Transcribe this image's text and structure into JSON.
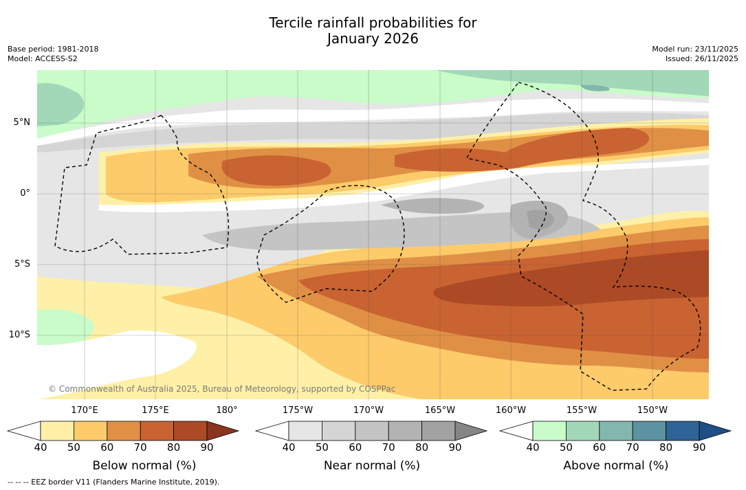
{
  "title_line1": "Tercile rainfall probabilities for",
  "title_line2": "January 2026",
  "meta_left": [
    "Base period: 1981-2018",
    "Model: ACCESS-S2"
  ],
  "meta_right": [
    "Model run: 23/11/2025",
    "Issued: 26/11/2025"
  ],
  "lat_labels": [
    "5°N",
    "0°",
    "5°S",
    "10°S"
  ],
  "lon_labels": [
    "170°E",
    "175°E",
    "180°",
    "175°W",
    "170°W",
    "165°W",
    "160°W",
    "155°W",
    "150°W"
  ],
  "copyright": "© Commonwealth of Australia 2025, Bureau of Meteorology, supported by COSPPac",
  "footer": "--  --  -- EEZ border V11 (Flanders Marine Institute, 2019).",
  "colorbars": [
    {
      "id": "below",
      "title": "Below normal (%)",
      "ticks": [
        "40",
        "50",
        "60",
        "70",
        "80",
        "90"
      ],
      "colors": [
        "#fff0a8",
        "#fdcb6a",
        "#e09045",
        "#c96331",
        "#ad4a26"
      ],
      "extend_min": "#ffffff",
      "extend_max": "#8b3420"
    },
    {
      "id": "near",
      "title": "Near normal (%)",
      "ticks": [
        "40",
        "50",
        "60",
        "70",
        "80",
        "90"
      ],
      "colors": [
        "#e6e6e6",
        "#d5d5d5",
        "#c4c4c4",
        "#b3b3b3",
        "#a2a2a2"
      ],
      "extend_min": "#ffffff",
      "extend_max": "#858585"
    },
    {
      "id": "above",
      "title": "Above normal (%)",
      "ticks": [
        "40",
        "50",
        "60",
        "70",
        "80",
        "90"
      ],
      "colors": [
        "#c9fcc9",
        "#a2d8b8",
        "#82b7ae",
        "#5c93a0",
        "#2f6496"
      ],
      "extend_min": "#ffffff",
      "extend_max": "#1d4f86"
    }
  ],
  "colors": {
    "below": "#fdcb6a",
    "near": "#d5d5d5",
    "above": "#a2d8b8"
  }
}
